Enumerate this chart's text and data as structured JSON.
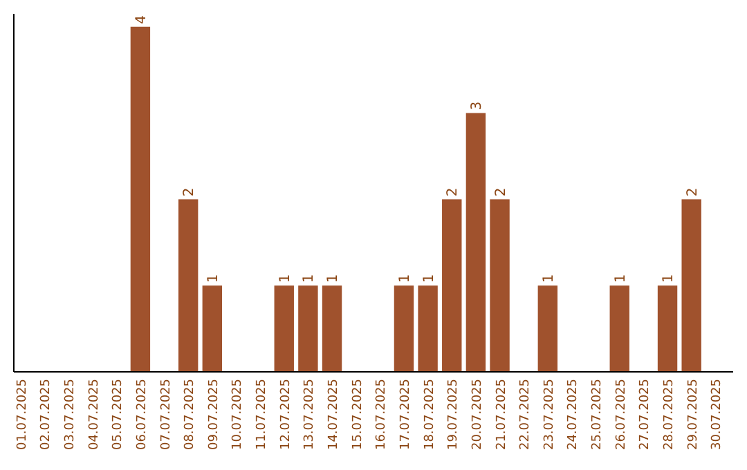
{
  "chart_data": {
    "type": "bar",
    "categories": [
      "01.07.2025",
      "02.07.2025",
      "03.07.2025",
      "04.07.2025",
      "05.07.2025",
      "06.07.2025",
      "07.07.2025",
      "08.07.2025",
      "09.07.2025",
      "10.07.2025",
      "11.07.2025",
      "12.07.2025",
      "13.07.2025",
      "14.07.2025",
      "15.07.2025",
      "16.07.2025",
      "17.07.2025",
      "18.07.2025",
      "19.07.2025",
      "20.07.2025",
      "21.07.2025",
      "22.07.2025",
      "23.07.2025",
      "24.07.2025",
      "25.07.2025",
      "26.07.2025",
      "27.07.2025",
      "28.07.2025",
      "29.07.2025",
      "30.07.2025"
    ],
    "values": [
      0,
      0,
      0,
      0,
      0,
      4,
      0,
      2,
      1,
      0,
      0,
      1,
      1,
      1,
      0,
      0,
      1,
      1,
      2,
      3,
      2,
      0,
      1,
      0,
      0,
      1,
      0,
      1,
      2,
      0
    ],
    "value_labels": [
      null,
      null,
      null,
      null,
      null,
      "4",
      null,
      "2",
      "1",
      null,
      null,
      "1",
      "1",
      "1",
      null,
      null,
      "1",
      "1",
      "2",
      "3",
      "2",
      null,
      "1",
      null,
      null,
      "1",
      null,
      "1",
      "2",
      null
    ],
    "color": "#a0522d",
    "ylim": [
      0,
      4.15
    ],
    "tick_labels": "x"
  }
}
